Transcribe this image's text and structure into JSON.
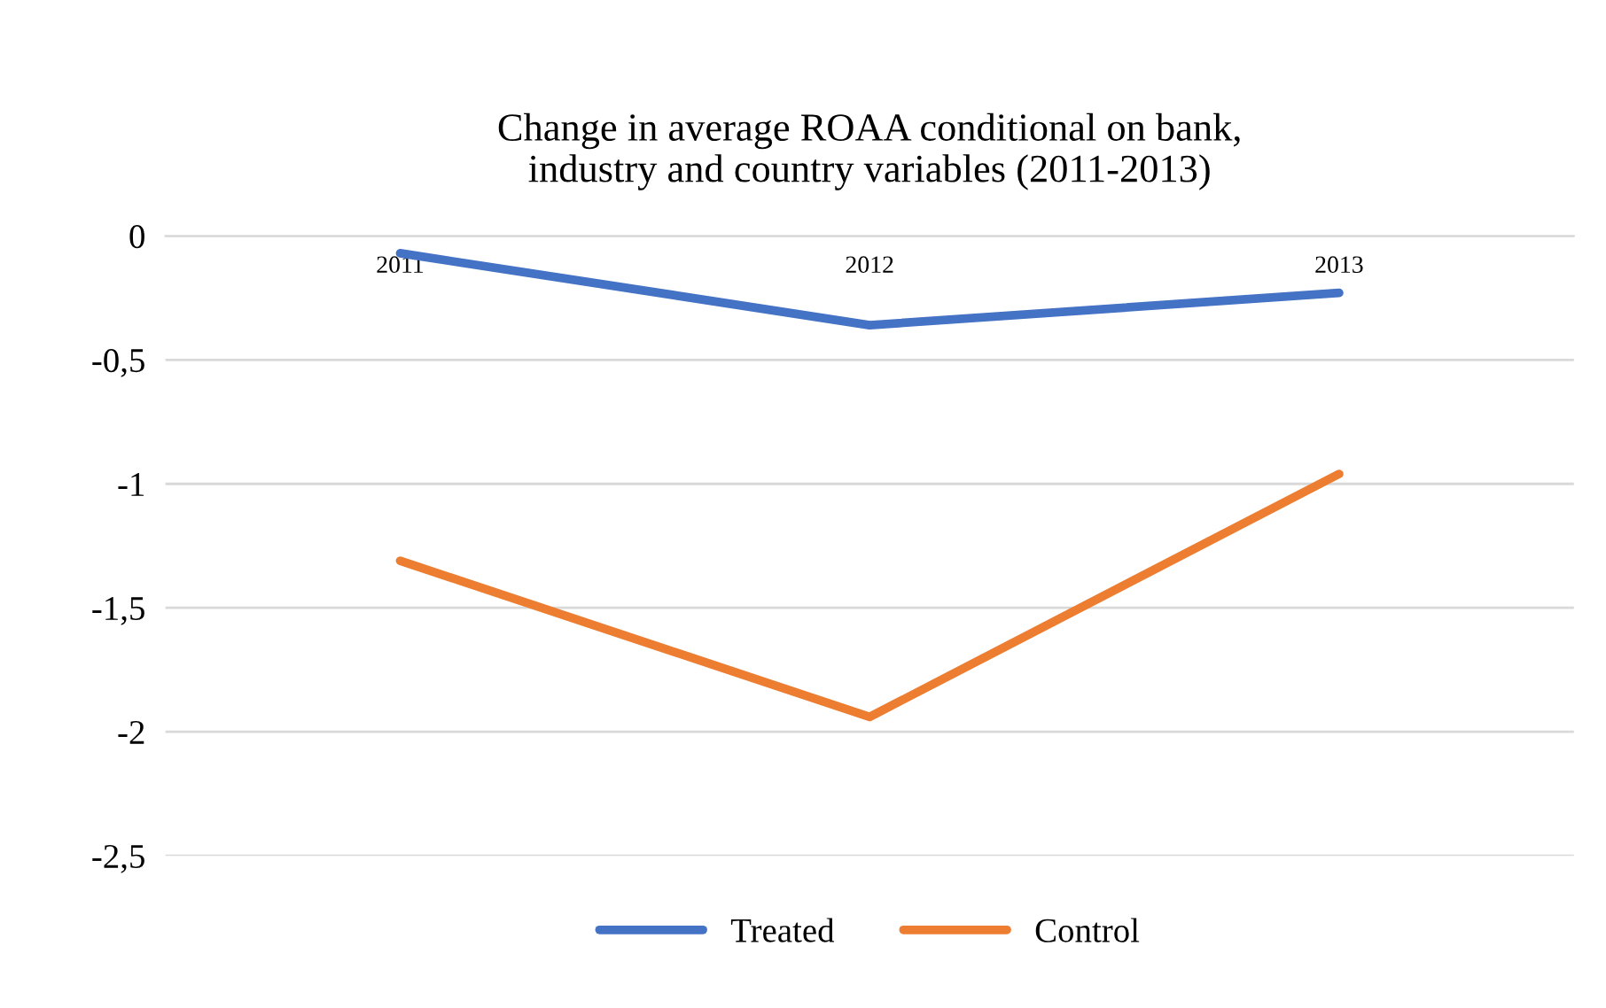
{
  "chart_data": {
    "type": "line",
    "title": "Change in average ROAA conditional on bank,\nindustry and country variables (2011-2013)",
    "categories": [
      "2011",
      "2012",
      "2013"
    ],
    "series": [
      {
        "name": "Treated",
        "color": "#4472c4",
        "values": [
          -0.07,
          -0.36,
          -0.23
        ]
      },
      {
        "name": "Control",
        "color": "#ed7d31",
        "values": [
          -1.31,
          -1.94,
          -0.96
        ]
      }
    ],
    "ylim": [
      -2.5,
      0
    ],
    "yticks": [
      {
        "value": 0,
        "label": "0"
      },
      {
        "value": -0.5,
        "label": "-0,5"
      },
      {
        "value": -1,
        "label": "-1"
      },
      {
        "value": -1.5,
        "label": "-1,5"
      },
      {
        "value": -2,
        "label": "-2"
      },
      {
        "value": -2.5,
        "label": "-2,5"
      }
    ],
    "grid": "y",
    "legend": "bottom",
    "marker": "none",
    "line_style": "solid"
  }
}
